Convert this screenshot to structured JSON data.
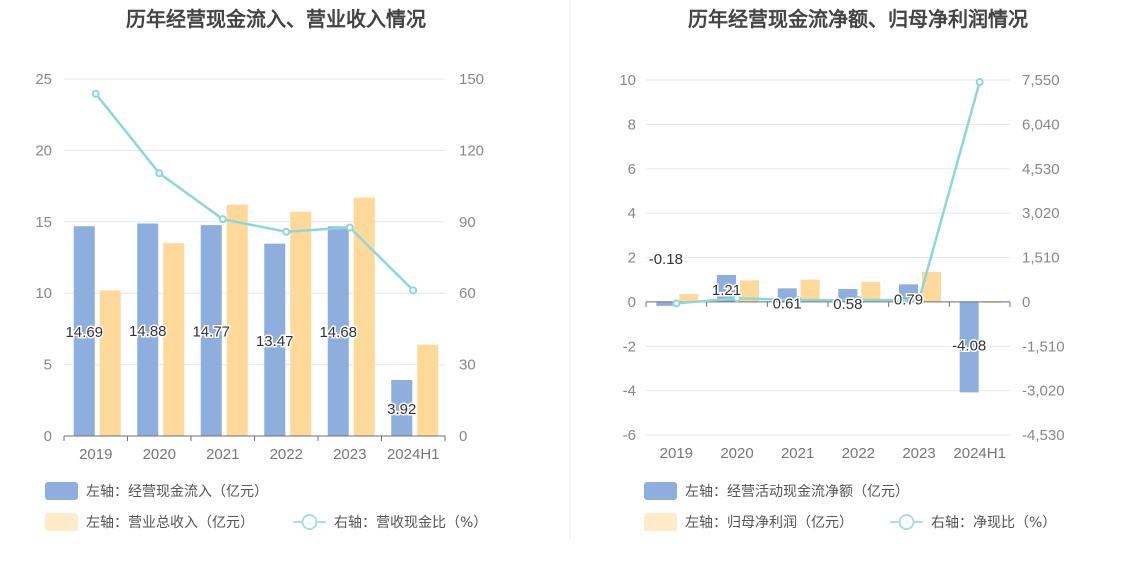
{
  "chart_data": [
    {
      "type": "bar",
      "title": "历年经营现金流入、营业收入情况",
      "categories": [
        "2019",
        "2020",
        "2021",
        "2022",
        "2023",
        "2024H1"
      ],
      "y_left": {
        "ylim": [
          0,
          25
        ],
        "ticks": [
          0,
          5,
          10,
          15,
          20,
          25
        ]
      },
      "y_right": {
        "ylim": [
          0,
          150
        ],
        "ticks": [
          0,
          30,
          60,
          90,
          120,
          150
        ]
      },
      "series": [
        {
          "name": "左轴：经营现金流入（亿元）",
          "type": "bar",
          "axis": "left",
          "color": "#8eaedd",
          "values": [
            14.69,
            14.88,
            14.77,
            13.47,
            14.68,
            3.92
          ],
          "labels": [
            "14.69",
            "14.88",
            "14.77",
            "13.47",
            "14.68",
            "3.92"
          ]
        },
        {
          "name": "左轴：营业总收入（亿元）",
          "type": "bar",
          "axis": "left",
          "color": "#ffd99a",
          "values": [
            10.2,
            13.5,
            16.2,
            15.7,
            16.7,
            6.4
          ]
        },
        {
          "name": "右轴：营收现金比（%）",
          "type": "line",
          "axis": "right",
          "color": "#8dd7dc",
          "values": [
            143.8,
            110.4,
            91.1,
            85.8,
            87.6,
            61.2
          ]
        }
      ]
    },
    {
      "type": "bar",
      "title": "历年经营现金流净额、归母净利润情况",
      "categories": [
        "2019",
        "2020",
        "2021",
        "2022",
        "2023",
        "2024H1"
      ],
      "y_left": {
        "ylim": [
          -6,
          10
        ],
        "ticks": [
          -6,
          -4,
          -2,
          0,
          2,
          4,
          6,
          8,
          10
        ]
      },
      "y_right": {
        "ylim": [
          -4530,
          7550
        ],
        "ticks": [
          -4530,
          -3020,
          -1510,
          0,
          1510,
          3020,
          4530,
          6040,
          7550
        ],
        "tick_labels": [
          "-4,530",
          "-3,020",
          "-1,510",
          "0",
          "1,510",
          "3,020",
          "4,530",
          "6,040",
          "7,550"
        ]
      },
      "series": [
        {
          "name": "左轴：经营活动现金流净额（亿元）",
          "type": "bar",
          "axis": "left",
          "color": "#8eaedd",
          "values": [
            -0.18,
            1.21,
            0.61,
            0.58,
            0.79,
            -4.08
          ],
          "labels": [
            "-0.18",
            "1.21",
            "0.61",
            "0.58",
            "0.79",
            "-4.08"
          ]
        },
        {
          "name": "左轴：归母净利润（亿元）",
          "type": "bar",
          "axis": "left",
          "color": "#ffd99a",
          "values": [
            0.35,
            0.97,
            1.0,
            0.9,
            1.35,
            -0.05
          ]
        },
        {
          "name": "右轴：净现比（%）",
          "type": "line",
          "axis": "right",
          "color": "#8dd7dc",
          "values": [
            -51,
            125,
            61,
            64,
            59,
            7480
          ]
        }
      ]
    }
  ]
}
